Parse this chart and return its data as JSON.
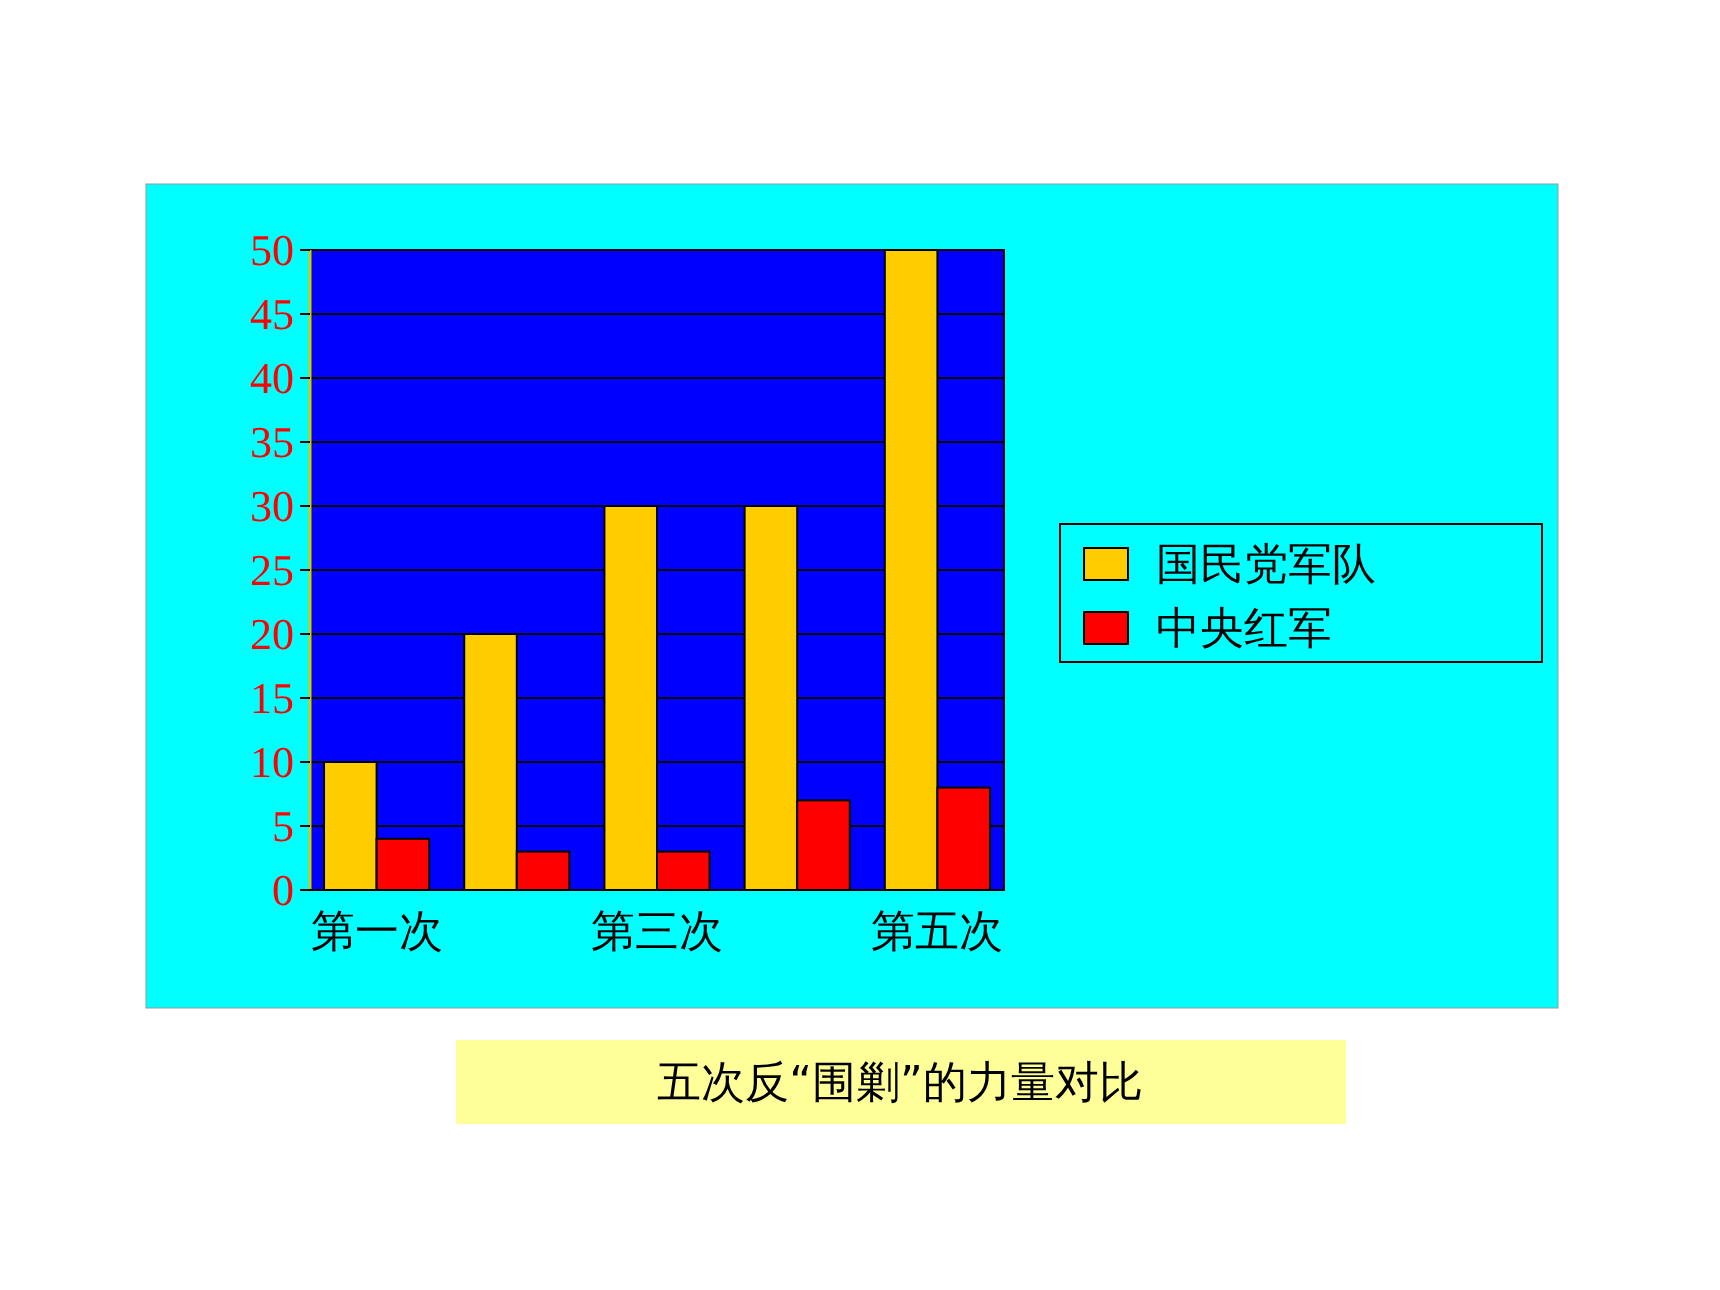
{
  "chart_data": {
    "type": "bar",
    "title": "五次反“围剿”的力量对比",
    "categories": [
      "第一次",
      null,
      "第三次",
      null,
      "第五次"
    ],
    "series": [
      {
        "name": "国民党军队",
        "color": "#ffcc00",
        "values": [
          10,
          20,
          30,
          30,
          50
        ]
      },
      {
        "name": "中央红军",
        "color": "#ff0000",
        "values": [
          4,
          3,
          3,
          7,
          8
        ]
      }
    ],
    "ylim": [
      0,
      50
    ],
    "yticks": [
      0,
      5,
      10,
      15,
      20,
      25,
      30,
      35,
      40,
      45,
      50
    ],
    "grid": "y",
    "legend": "right"
  }
}
